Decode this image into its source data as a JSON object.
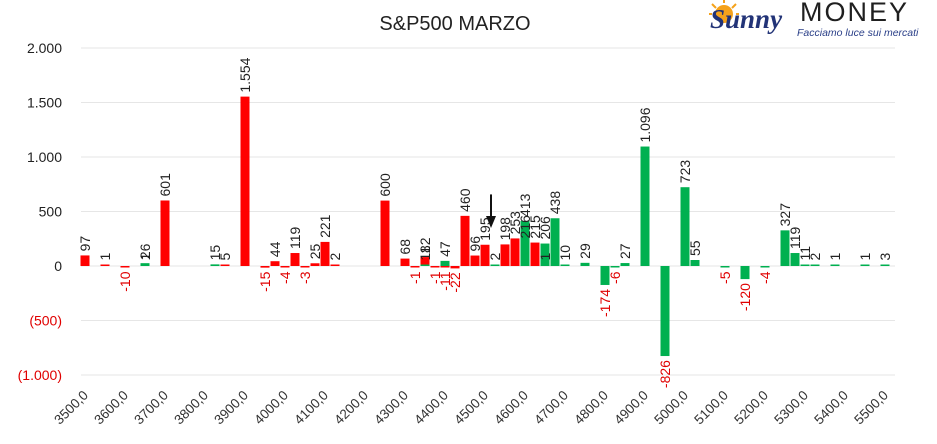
{
  "chart_data": {
    "type": "bar",
    "title": "S&P500 MARZO",
    "xlabel": "",
    "ylabel": "",
    "ylim": [
      -1000,
      2000
    ],
    "grid": true,
    "legend": "none",
    "y_ticks": [
      {
        "value": 2000,
        "label": "2.000"
      },
      {
        "value": 1500,
        "label": "1.500"
      },
      {
        "value": 1000,
        "label": "1.000"
      },
      {
        "value": 500,
        "label": "500"
      },
      {
        "value": 0,
        "label": "0"
      },
      {
        "value": -500,
        "label": "(500)"
      },
      {
        "value": -1000,
        "label": "(1.000)"
      }
    ],
    "x_ticks": [
      "3500,0",
      "3600,0",
      "3700,0",
      "3800,0",
      "3900,0",
      "4000,0",
      "4100,0",
      "4200,0",
      "4300,0",
      "4400,0",
      "4500,0",
      "4600,0",
      "4700,0",
      "4800,0",
      "4900,0",
      "5000,0",
      "5100,0",
      "5200,0",
      "5300,0",
      "5400,0",
      "5500,0"
    ],
    "series": [
      {
        "color": "#ff0000",
        "x": [
          3500,
          3550,
          3600,
          3650,
          3700,
          3850,
          3900,
          3950,
          3975,
          4000,
          4025,
          4050,
          4075,
          4100,
          4125,
          4250,
          4300,
          4325,
          4350,
          4375,
          4400,
          4425,
          4450,
          4475,
          4500,
          4550,
          4575,
          4600,
          4625,
          4650
        ],
        "values": [
          97,
          1,
          -10,
          1,
          601,
          5,
          1554,
          -15,
          44,
          -4,
          119,
          -3,
          25,
          221,
          2,
          600,
          68,
          -1,
          82,
          -1,
          -11,
          -22,
          460,
          96,
          195,
          198,
          253,
          216,
          215,
          1
        ],
        "labels": [
          "97",
          "1",
          "-10",
          "1",
          "601",
          "5",
          "1.554",
          "-15",
          "44",
          "-4",
          "119",
          "-3",
          "25",
          "221",
          "2",
          "600",
          "68",
          "-1",
          "82",
          "-1",
          "-11",
          "-22",
          "460",
          "96",
          "195",
          "198",
          "253",
          "216",
          "215",
          "1"
        ]
      },
      {
        "color": "#00b050",
        "x": [
          3650,
          3825,
          4350,
          4400,
          4525,
          4600,
          4650,
          4675,
          4700,
          4750,
          4800,
          4825,
          4850,
          4900,
          4950,
          5000,
          5025,
          5100,
          5150,
          5200,
          5250,
          5275,
          5300,
          5325,
          5375,
          5450,
          5500
        ],
        "values": [
          26,
          15,
          11,
          47,
          2,
          413,
          206,
          438,
          10,
          29,
          -174,
          -6,
          27,
          1096,
          -826,
          723,
          55,
          -5,
          -120,
          -4,
          327,
          119,
          11,
          2,
          1,
          1,
          3
        ],
        "labels": [
          "26",
          "15",
          "11",
          "47",
          "2",
          "413",
          "206",
          "438",
          "10",
          "29",
          "-174",
          "-6",
          "27",
          "1.096",
          "-826",
          "723",
          "55",
          "-5",
          "-120",
          "-4",
          "327",
          "119",
          "11",
          "2",
          "1",
          "1",
          "3"
        ]
      }
    ],
    "annotation": {
      "type": "arrow",
      "at_x": 4525,
      "from_y": 620,
      "to_y": 330
    }
  },
  "logo": {
    "brand": "Sunny",
    "word": "MONEY",
    "tagline": "Facciamo luce sui mercati",
    "sun_color": "#f5a21b",
    "brand_color": "#223377"
  },
  "colors": {
    "positive_label": "#222222",
    "negative_label": "#e00000",
    "grid": "#e6e6e6"
  }
}
